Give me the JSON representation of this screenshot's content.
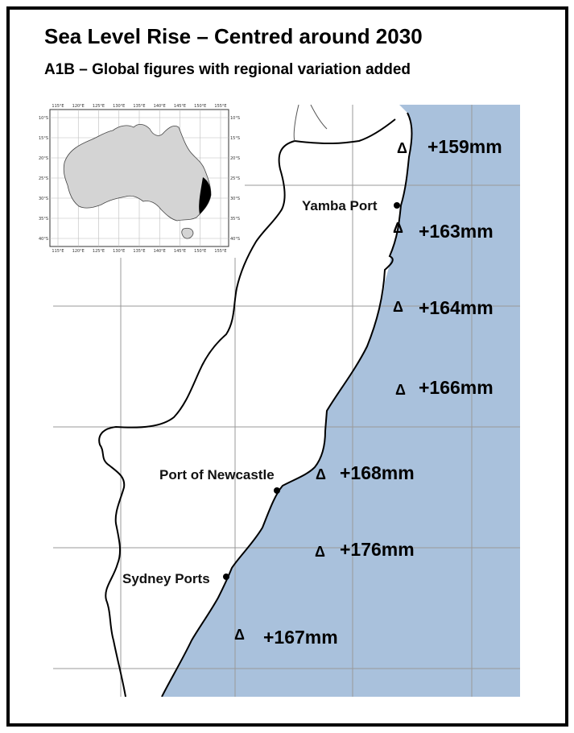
{
  "title": "Sea Level Rise – Centred around 2030",
  "subtitle": "A1B – Global figures with regional variation added",
  "colors": {
    "sea": "#a9c1dc",
    "land": "#ffffff",
    "grid": "#999999",
    "inset_land": "#d4d4d4",
    "highlight": "#000000"
  },
  "ports": [
    {
      "id": "yamba",
      "label": "Yamba Port"
    },
    {
      "id": "newcastle",
      "label": "Port of Newcastle"
    },
    {
      "id": "sydney",
      "label": "Sydney Ports"
    }
  ],
  "marker_symbol": "Δ",
  "sea_level_values": [
    {
      "value": "+159mm"
    },
    {
      "value": "+163mm"
    },
    {
      "value": "+164mm"
    },
    {
      "value": "+166mm"
    },
    {
      "value": "+168mm"
    },
    {
      "value": "+176mm"
    },
    {
      "value": "+167mm"
    }
  ],
  "inset": {
    "lon_ticks": [
      "115°E",
      "120°E",
      "125°E",
      "130°E",
      "135°E",
      "140°E",
      "145°E",
      "150°E",
      "155°E"
    ],
    "lat_ticks": [
      "10°S",
      "15°S",
      "20°S",
      "25°S",
      "30°S",
      "35°S",
      "40°S"
    ]
  }
}
